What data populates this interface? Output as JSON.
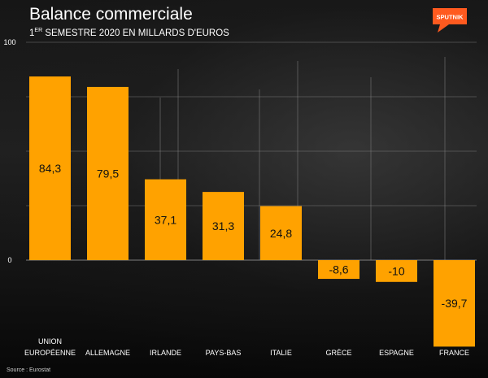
{
  "title": "Balance commerciale",
  "subtitle": {
    "prefix": "1",
    "ordinal": "ER",
    "rest": " SEMESTRE 2020 EN MILLARDS D'EUROS"
  },
  "source": "Source : Eurostat",
  "logo": {
    "text": "SPUTNIK",
    "color": "#ff5a1f"
  },
  "colors": {
    "bar": "#ffa200",
    "grid": "#8a8a8a",
    "text": "#ffffff",
    "label_text": "#111111"
  },
  "chart_data": {
    "type": "bar",
    "title": "Balance commerciale",
    "subtitle": "1ER SEMESTRE 2020 EN MILLARDS D'EUROS",
    "categories": [
      [
        "UNION",
        "EUROPÉENNE"
      ],
      [
        "ALLEMAGNE"
      ],
      [
        "IRLANDE"
      ],
      [
        "PAYS-BAS"
      ],
      [
        "ITALIE"
      ],
      [
        "GRÈCE"
      ],
      [
        "ESPAGNE"
      ],
      [
        "FRANCE"
      ]
    ],
    "values": [
      84.3,
      79.5,
      37.1,
      31.3,
      24.8,
      -8.6,
      -10,
      -39.7
    ],
    "value_labels": [
      "84,3",
      "79,5",
      "37,1",
      "31,3",
      "24,8",
      "-8,6",
      "-10",
      "-39,7"
    ],
    "ylim": [
      0,
      100
    ],
    "y_ticks": [
      0,
      100
    ],
    "gridlines": [
      0,
      25,
      50,
      75,
      100
    ],
    "grid": true,
    "legend": false
  }
}
